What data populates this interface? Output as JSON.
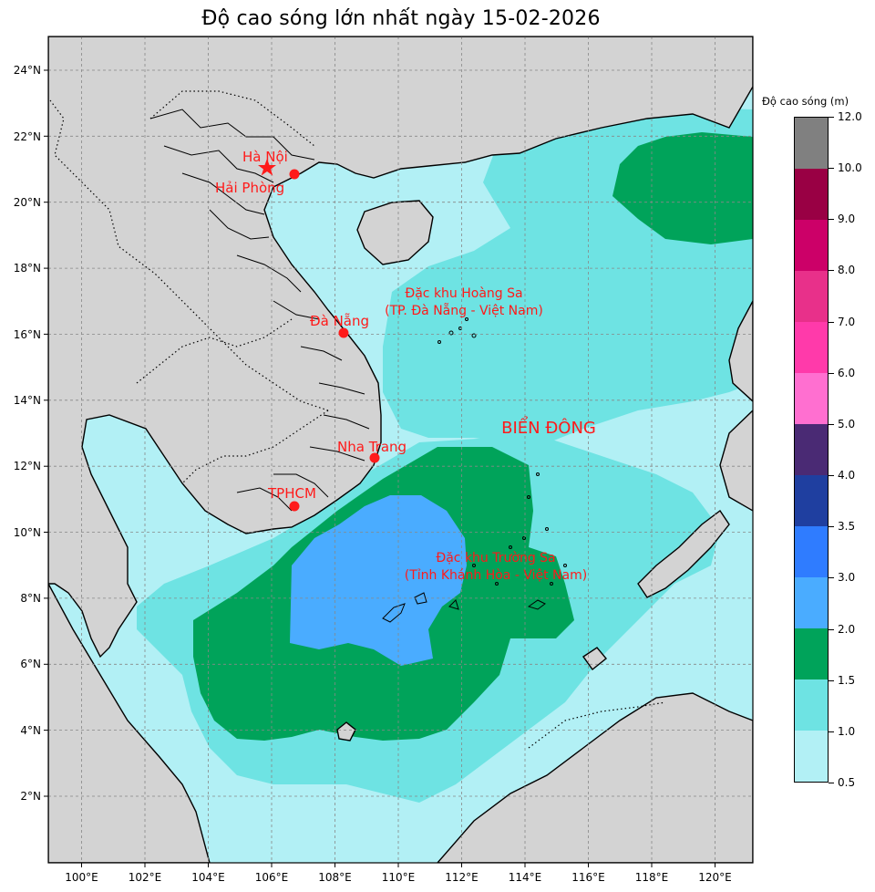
{
  "title": "Độ cao sóng lớn nhất ngày 15-02-2026",
  "colorbar": {
    "title": "Độ cao sóng (m)",
    "levels": [
      "0.5",
      "1.0",
      "1.5",
      "2.0",
      "3.0",
      "3.5",
      "4.0",
      "5.0",
      "6.0",
      "7.0",
      "8.0",
      "9.0",
      "10.0",
      "12.0"
    ],
    "colors": [
      "#b2f0f5",
      "#6ee3e3",
      "#00a35a",
      "#4aacff",
      "#2f7cff",
      "#1f3fa0",
      "#4a2a74",
      "#ff6fd0",
      "#ff3aaa",
      "#e8308a",
      "#cc0068",
      "#990044",
      "#808080"
    ]
  },
  "axes": {
    "x_ticks": [
      "100°E",
      "102°E",
      "104°E",
      "106°E",
      "108°E",
      "110°E",
      "112°E",
      "114°E",
      "116°E",
      "118°E",
      "120°E"
    ],
    "y_ticks": [
      "2°N",
      "4°N",
      "6°N",
      "8°N",
      "10°N",
      "12°N",
      "14°N",
      "16°N",
      "18°N",
      "20°N",
      "22°N",
      "24°N"
    ]
  },
  "cities": [
    {
      "name": "Hà Nội",
      "marker": "star"
    },
    {
      "name": "Hải Phòng",
      "marker": "dot"
    },
    {
      "name": "Đà Nẵng",
      "marker": "dot"
    },
    {
      "name": "Nha Trang",
      "marker": "dot"
    },
    {
      "name": "TPHCM",
      "marker": "dot"
    }
  ],
  "regions": {
    "hoang_sa_line1": "Đặc khu Hoàng Sa",
    "hoang_sa_line2": "(TP. Đà Nẵng - Việt Nam)",
    "bien_dong": "BIỂN ĐÔNG",
    "truong_sa_line1": "Đặc khu Trường Sa",
    "truong_sa_line2": "(Tỉnh Khánh Hòa - Việt Nam)"
  },
  "style": {
    "land": "#d3d3d3",
    "label_color": "#ff1a1a",
    "grid": true
  }
}
